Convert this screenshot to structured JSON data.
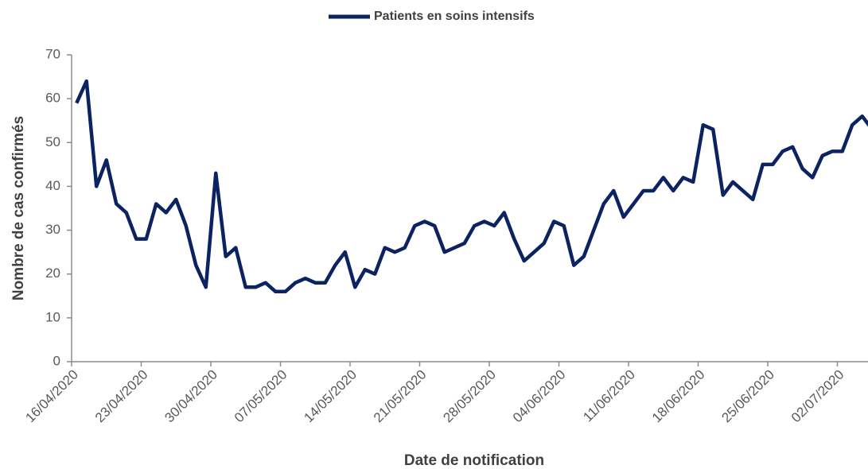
{
  "chart_data": {
    "type": "line",
    "x_label": "Date de notification",
    "y_label": "Nombre de cas confirmés",
    "categories": [
      "16/04/2020",
      null,
      null,
      null,
      null,
      null,
      null,
      "23/04/2020",
      null,
      null,
      null,
      null,
      null,
      null,
      "30/04/2020",
      null,
      null,
      null,
      null,
      null,
      null,
      "07/05/2020",
      null,
      null,
      null,
      null,
      null,
      null,
      "14/05/2020",
      null,
      null,
      null,
      null,
      null,
      null,
      "21/05/2020",
      null,
      null,
      null,
      null,
      null,
      null,
      "28/05/2020",
      null,
      null,
      null,
      null,
      null,
      null,
      "04/06/2020",
      null,
      null,
      null,
      null,
      null,
      null,
      "11/06/2020",
      null,
      null,
      null,
      null,
      null,
      null,
      "18/06/2020",
      null,
      null,
      null,
      null,
      null,
      null,
      "25/06/2020",
      null,
      null,
      null,
      null,
      null,
      null,
      "02/07/2020",
      null,
      null,
      null
    ],
    "series": [
      {
        "name": "Patients en soins intensifs",
        "color": "#0b2361",
        "values": [
          59,
          64,
          40,
          46,
          36,
          34,
          28,
          28,
          36,
          34,
          37,
          31,
          22,
          17,
          43,
          24,
          26,
          17,
          17,
          18,
          16,
          16,
          18,
          19,
          18,
          18,
          22,
          25,
          17,
          21,
          20,
          26,
          25,
          26,
          31,
          32,
          31,
          25,
          26,
          27,
          31,
          32,
          31,
          34,
          28,
          23,
          25,
          27,
          32,
          31,
          22,
          24,
          30,
          36,
          39,
          33,
          36,
          39,
          39,
          42,
          39,
          42,
          41,
          54,
          53,
          38,
          41,
          39,
          37,
          45,
          45,
          48,
          49,
          44,
          42,
          47,
          48,
          48,
          54,
          56,
          53
        ]
      }
    ],
    "ylim": [
      0,
      70
    ],
    "yticks": [
      0,
      10,
      20,
      30,
      40,
      50,
      60,
      70
    ],
    "grid": false,
    "legend": "top"
  }
}
